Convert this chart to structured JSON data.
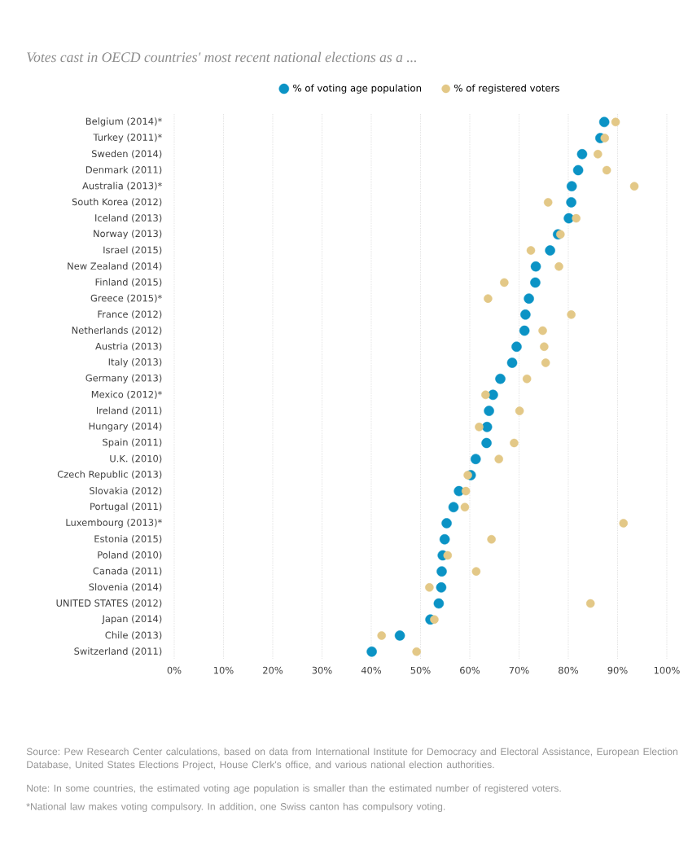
{
  "chart_data": {
    "type": "scatter",
    "title": "Votes cast in OECD countries' most recent national elections as a ...",
    "categories": [
      "Belgium (2014)*",
      "Turkey (2011)*",
      "Sweden (2014)",
      "Denmark (2011)",
      "Australia (2013)*",
      "South Korea (2012)",
      "Iceland (2013)",
      "Norway (2013)",
      "Israel (2015)",
      "New Zealand (2014)",
      "Finland (2015)",
      "Greece (2015)*",
      "France (2012)",
      "Netherlands (2012)",
      "Austria (2013)",
      "Italy (2013)",
      "Germany (2013)",
      "Mexico (2012)*",
      "Ireland (2011)",
      "Hungary (2014)",
      "Spain (2011)",
      "U.K. (2010)",
      "Czech Republic (2013)",
      "Slovakia (2012)",
      "Portugal (2011)",
      "Luxembourg (2013)*",
      "Estonia (2015)",
      "Poland (2010)",
      "Canada (2011)",
      "Slovenia (2014)",
      "UNITED STATES (2012)",
      "Japan (2014)",
      "Chile (2013)",
      "Switzerland (2011)"
    ],
    "orientation": "horizontal",
    "series": [
      {
        "name": "% of voting age population",
        "color": "#0b93c5",
        "values": [
          87.3,
          86.5,
          82.8,
          82.0,
          80.7,
          80.6,
          80.1,
          77.9,
          76.3,
          73.4,
          73.3,
          72.0,
          71.3,
          71.1,
          69.5,
          68.6,
          66.2,
          64.7,
          63.9,
          63.5,
          63.4,
          61.2,
          60.2,
          57.8,
          56.7,
          55.3,
          54.9,
          54.5,
          54.3,
          54.2,
          53.7,
          52.0,
          45.8,
          40.1
        ]
      },
      {
        "name": "% of registered voters",
        "color": "#e3c887",
        "values": [
          89.6,
          87.4,
          86.0,
          87.8,
          93.4,
          75.9,
          81.6,
          78.4,
          72.4,
          78.1,
          67.0,
          63.7,
          80.6,
          74.8,
          75.1,
          75.4,
          71.6,
          63.2,
          70.1,
          61.9,
          69.0,
          65.9,
          59.6,
          59.2,
          59.0,
          91.2,
          64.4,
          55.5,
          61.3,
          51.8,
          84.5,
          52.8,
          42.1,
          49.2
        ]
      }
    ],
    "xlim": [
      0,
      100
    ],
    "xticks": [
      {
        "value": 0,
        "label": "0%"
      },
      {
        "value": 10,
        "label": "10%"
      },
      {
        "value": 20,
        "label": "20%"
      },
      {
        "value": 30,
        "label": "30%"
      },
      {
        "value": 40,
        "label": "40%"
      },
      {
        "value": 50,
        "label": "50%"
      },
      {
        "value": 60,
        "label": "60%"
      },
      {
        "value": 70,
        "label": "70%"
      },
      {
        "value": 80,
        "label": "80%"
      },
      {
        "value": 90,
        "label": "90%"
      },
      {
        "value": 100,
        "label": "100%"
      }
    ],
    "grid": "x",
    "legend": "top",
    "annotations": [
      "Source: Pew Research Center calculations, based on data from International Institute for Democracy and Electoral Assistance, European Election Database, United States Elections Project, House Clerk's office, and various national election authorities.",
      "Note: In some countries, the estimated voting age population is smaller than the estimated number of registered voters.",
      "*National law makes voting compulsory. In addition, one Swiss canton has compulsory voting."
    ]
  }
}
